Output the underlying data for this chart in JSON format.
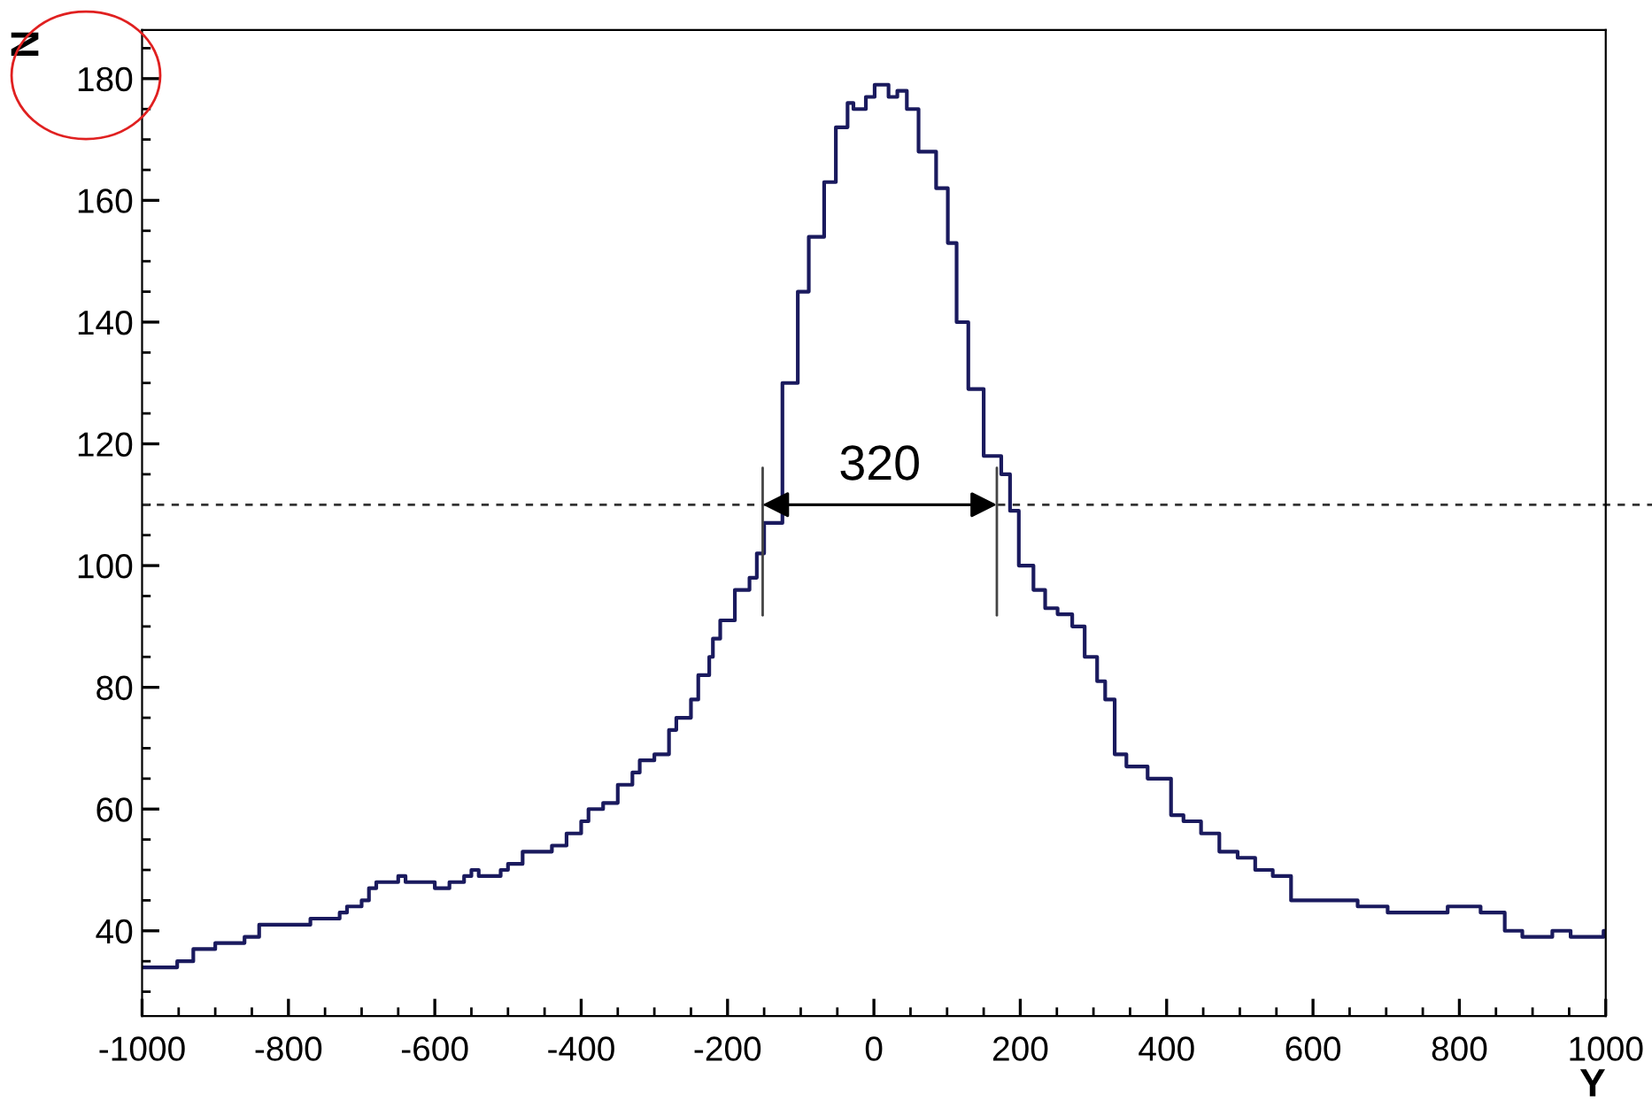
{
  "chart_data": {
    "type": "step",
    "xlabel": "Y",
    "ylabel": "N",
    "series": [
      {
        "color": "#1a1a5e",
        "x": [
          -1000,
          -952,
          -930,
          -900,
          -860,
          -840,
          -770,
          -730,
          -720,
          -700,
          -690,
          -680,
          -650,
          -640,
          -600,
          -580,
          -560,
          -550,
          -540,
          -510,
          -500,
          -480,
          -440,
          -420,
          -400,
          -390,
          -370,
          -350,
          -330,
          -320,
          -300,
          -280,
          -270,
          -250,
          -240,
          -225,
          -220,
          -210,
          -190,
          -170,
          -160,
          -150,
          -125,
          -104,
          -89,
          -68,
          -52,
          -36,
          -28,
          -11,
          1,
          20,
          32,
          45,
          61,
          85,
          101,
          113,
          129,
          150,
          174,
          186,
          198,
          218,
          234,
          251,
          271,
          288,
          305,
          316,
          329,
          345,
          374,
          406,
          423,
          447,
          472,
          497,
          521,
          545,
          570,
          661,
          702,
          784,
          829,
          862,
          886,
          927,
          952,
          997,
          1000
        ],
        "values": [
          34,
          35,
          37,
          38,
          39,
          41,
          42,
          43,
          44,
          45,
          47,
          48,
          49,
          48,
          47,
          48,
          49,
          50,
          49,
          50,
          51,
          53,
          54,
          56,
          58,
          60,
          61,
          64,
          66,
          68,
          69,
          73,
          75,
          78,
          82,
          85,
          88,
          91,
          96,
          98,
          102,
          107,
          130,
          145,
          154,
          163,
          172,
          176,
          175,
          177,
          179,
          177,
          178,
          175,
          168,
          162,
          153,
          140,
          129,
          118,
          115,
          109,
          100,
          96,
          93,
          92,
          90,
          85,
          81,
          78,
          69,
          67,
          65,
          59,
          58,
          56,
          53,
          52,
          50,
          49,
          45,
          44,
          43,
          44,
          43,
          40,
          39,
          40,
          39,
          40,
          40
        ]
      }
    ],
    "xlim": [
      -1000,
      1000
    ],
    "ylim": [
      26,
      188
    ],
    "xticks": [
      -1000,
      -800,
      -600,
      -400,
      -200,
      0,
      200,
      400,
      600,
      800,
      1000
    ],
    "yticks": [
      40,
      60,
      80,
      100,
      120,
      140,
      160,
      180
    ],
    "ref_lines": [
      {
        "axis": "y",
        "value": 110,
        "line_style": "dashed",
        "color": "#333333"
      }
    ],
    "annotations": [
      {
        "text": "320",
        "x": -152,
        "y": 110
      }
    ],
    "grid": false,
    "legend": false,
    "marker": "none",
    "line_style": "solid"
  }
}
